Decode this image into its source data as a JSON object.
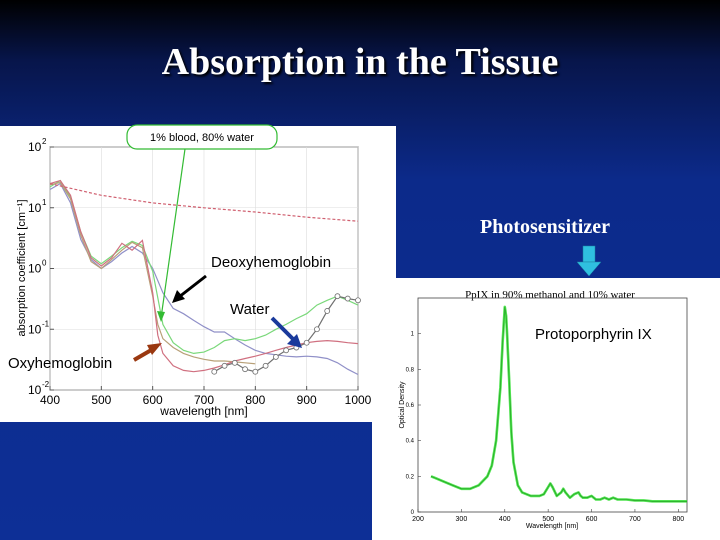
{
  "slide": {
    "title": "Absorption in the Tissue",
    "photosensitizer_label": "Photosensitizer",
    "colors": {
      "background": "#0c2a8a",
      "arrow_cyan": "#2fc0e0"
    }
  },
  "chart_data": [
    {
      "type": "line",
      "xlabel": "wavelength [nm]",
      "ylabel": "absorption coefficient [cm⁻¹]",
      "xlim": [
        400,
        1000
      ],
      "ylim": [
        0.01,
        100
      ],
      "y_scale": "log",
      "xticks": [
        400,
        500,
        600,
        700,
        800,
        900,
        1000
      ],
      "yticks": [
        {
          "base": "10",
          "exp": "-2",
          "value": 0.01
        },
        {
          "base": "10",
          "exp": "-1",
          "value": 0.1
        },
        {
          "base": "10",
          "exp": "0",
          "value": 1
        },
        {
          "base": "10",
          "exp": "1",
          "value": 10
        },
        {
          "base": "10",
          "exp": "2",
          "value": 100
        }
      ],
      "grid": true,
      "annotations": {
        "callout": "1% blood, 80% water",
        "deoxy": "Deoxyhemoglobin",
        "water": "Water",
        "oxy": "Oxyhemoglobin"
      },
      "series": [
        {
          "key": "deoxy",
          "color": "#9090c8",
          "style": "solid",
          "x": [
            400,
            420,
            440,
            460,
            480,
            500,
            520,
            540,
            560,
            580,
            600,
            620,
            640,
            660,
            680,
            700,
            720,
            740,
            760,
            780,
            800,
            820,
            840,
            860,
            880,
            900,
            920,
            940,
            960,
            980,
            1000
          ],
          "y": [
            20,
            25,
            12,
            3,
            1.4,
            1.0,
            1.3,
            1.8,
            2.3,
            1.8,
            1.0,
            0.4,
            0.22,
            0.18,
            0.14,
            0.11,
            0.09,
            0.09,
            0.07,
            0.055,
            0.045,
            0.04,
            0.038,
            0.036,
            0.035,
            0.036,
            0.035,
            0.033,
            0.028,
            0.022,
            0.018
          ]
        },
        {
          "key": "green",
          "color": "#7ad87a",
          "style": "solid",
          "x": [
            400,
            420,
            440,
            460,
            480,
            500,
            520,
            540,
            560,
            580,
            600,
            620,
            640,
            660,
            680,
            700,
            720,
            740,
            760,
            780,
            800,
            820,
            840,
            860,
            880,
            900,
            920,
            940,
            960,
            980,
            1000
          ],
          "y": [
            22,
            28,
            15,
            4,
            1.6,
            1.2,
            1.6,
            2.2,
            2.8,
            2.4,
            0.9,
            0.12,
            0.06,
            0.045,
            0.04,
            0.042,
            0.05,
            0.065,
            0.07,
            0.065,
            0.07,
            0.08,
            0.1,
            0.12,
            0.15,
            0.18,
            0.25,
            0.3,
            0.35,
            0.3,
            0.25
          ]
        },
        {
          "key": "olive",
          "color": "#b8a078",
          "style": "solid",
          "x": [
            400,
            420,
            440,
            460,
            480,
            500,
            520,
            540,
            560,
            580,
            600,
            610,
            620,
            640,
            660,
            680,
            700,
            720,
            740,
            760,
            780,
            800
          ],
          "y": [
            24,
            26,
            14,
            3.5,
            1.3,
            1.0,
            1.4,
            2.0,
            2.7,
            2.2,
            0.35,
            0.12,
            0.07,
            0.05,
            0.04,
            0.035,
            0.032,
            0.03,
            0.03,
            0.029,
            0.028,
            0.027
          ]
        },
        {
          "key": "oxy",
          "color": "#d07080",
          "style": "solid",
          "x": [
            400,
            420,
            440,
            460,
            480,
            500,
            520,
            540,
            560,
            580,
            600,
            610,
            620,
            640,
            660,
            680,
            700,
            720,
            740,
            760,
            780,
            800,
            820,
            840,
            860,
            880,
            900,
            920,
            940,
            960,
            980,
            1000
          ],
          "y": [
            25,
            28,
            16,
            4,
            1.5,
            1.1,
            1.5,
            2.6,
            2.0,
            2.9,
            0.4,
            0.08,
            0.04,
            0.025,
            0.021,
            0.02,
            0.021,
            0.023,
            0.026,
            0.03,
            0.033,
            0.036,
            0.04,
            0.045,
            0.05,
            0.055,
            0.06,
            0.063,
            0.065,
            0.063,
            0.06,
            0.058
          ]
        },
        {
          "key": "water",
          "color": "#707070",
          "style": "circles",
          "x": [
            720,
            740,
            760,
            780,
            800,
            820,
            840,
            860,
            880,
            900,
            920,
            940,
            960,
            980,
            1000
          ],
          "y": [
            0.02,
            0.025,
            0.028,
            0.022,
            0.02,
            0.025,
            0.035,
            0.045,
            0.05,
            0.06,
            0.1,
            0.2,
            0.35,
            0.32,
            0.3
          ]
        },
        {
          "key": "scatter",
          "color": "#d06070",
          "style": "dashed",
          "x": [
            400,
            500,
            600,
            700,
            800,
            900,
            1000
          ],
          "y": [
            25,
            16,
            12,
            10,
            8.5,
            7,
            6
          ]
        }
      ]
    },
    {
      "type": "line",
      "title": "PpIX in 90% methanol and 10% water",
      "label": "Protoporphyrin IX",
      "xlabel": "Wavelength [nm]",
      "ylabel": "Optical Density",
      "xlim": [
        200,
        820
      ],
      "ylim": [
        0,
        1.2
      ],
      "xticks": [
        200,
        300,
        400,
        500,
        600,
        700,
        800
      ],
      "yticks": [
        0,
        0.2,
        0.4,
        0.6,
        0.8,
        1
      ],
      "series": [
        {
          "key": "ppix",
          "color": "#33dd33",
          "x": [
            230,
            240,
            260,
            280,
            300,
            320,
            340,
            360,
            370,
            380,
            390,
            395,
            400,
            403,
            405,
            410,
            415,
            420,
            430,
            440,
            460,
            480,
            490,
            500,
            505,
            510,
            520,
            530,
            535,
            540,
            550,
            560,
            570,
            575,
            580,
            590,
            600,
            610,
            620,
            630,
            640,
            650,
            660,
            680,
            700,
            720,
            740,
            760,
            780,
            800,
            820
          ],
          "y": [
            0.2,
            0.19,
            0.17,
            0.15,
            0.13,
            0.13,
            0.15,
            0.2,
            0.26,
            0.4,
            0.7,
            0.95,
            1.15,
            1.1,
            1.02,
            0.75,
            0.45,
            0.28,
            0.15,
            0.11,
            0.09,
            0.09,
            0.1,
            0.14,
            0.16,
            0.14,
            0.09,
            0.11,
            0.13,
            0.11,
            0.08,
            0.1,
            0.11,
            0.09,
            0.08,
            0.08,
            0.09,
            0.07,
            0.07,
            0.08,
            0.07,
            0.08,
            0.07,
            0.07,
            0.065,
            0.065,
            0.06,
            0.06,
            0.06,
            0.06,
            0.06
          ]
        }
      ]
    }
  ]
}
